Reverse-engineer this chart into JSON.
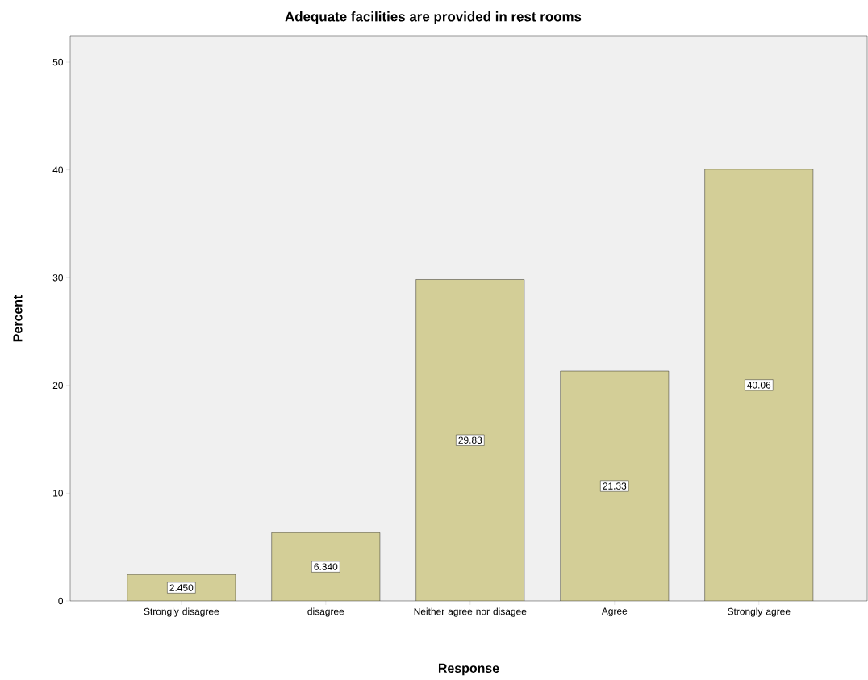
{
  "chart_data": {
    "type": "bar",
    "title": "Adequate facilities are provided in rest rooms",
    "xlabel": "Response",
    "ylabel": "Percent",
    "categories": [
      "Strongly disagree",
      "disagree",
      "Neither agree nor disagee",
      "Agree",
      "Strongly agree"
    ],
    "values": [
      2.45,
      6.34,
      29.83,
      21.33,
      40.06
    ],
    "value_labels": [
      "2.450",
      "6.340",
      "29.83",
      "21.33",
      "40.06"
    ],
    "color": "#d3ce97",
    "ylim": [
      0,
      52.4
    ],
    "yticks": [
      0,
      10,
      20,
      30,
      40,
      50
    ]
  }
}
